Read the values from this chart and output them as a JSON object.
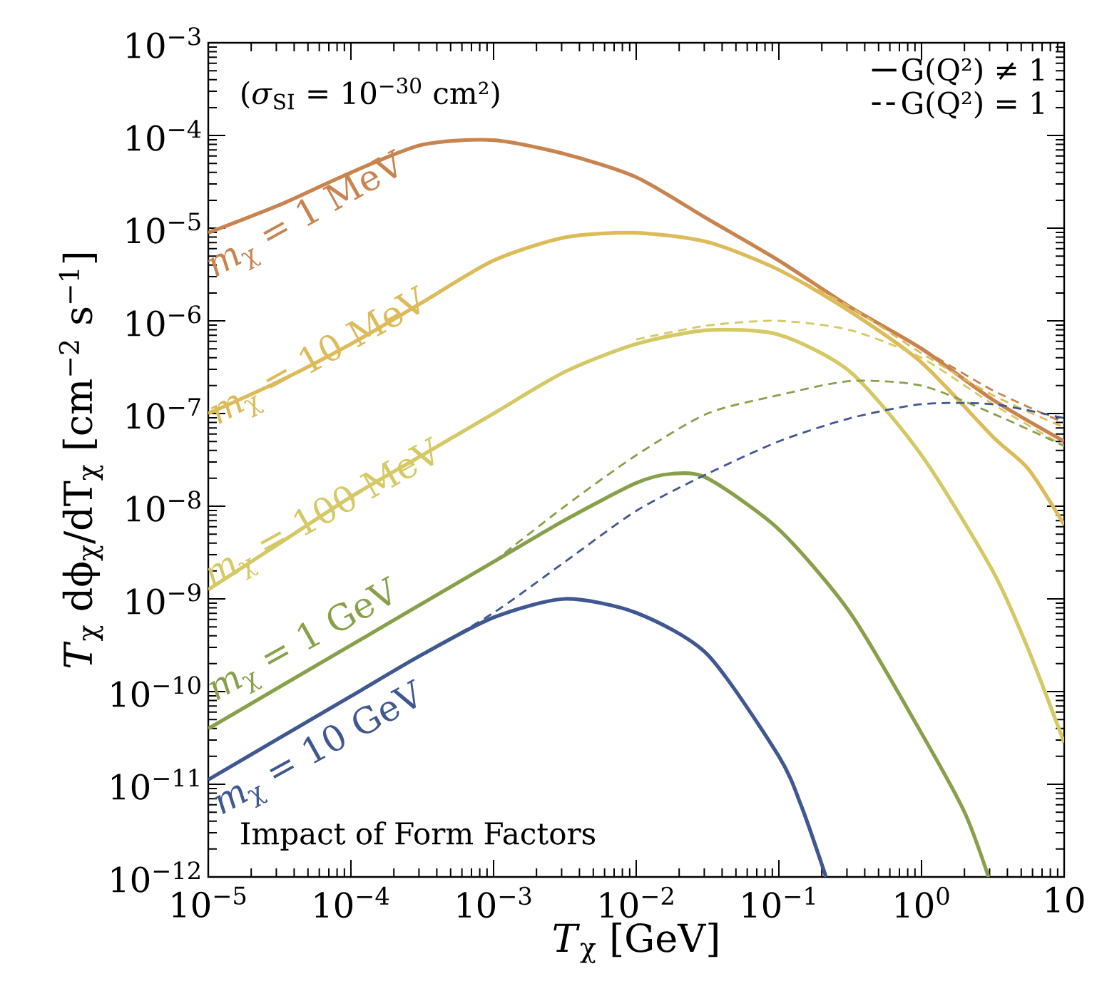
{
  "chart_data": {
    "type": "line",
    "xlabel": "*T*$_{χ}$ [GeV]",
    "ylabel": "*T*$_{χ}$ dϕ$_{χ}$/dT$_{χ}$ [cm$^{−2}$ s$^{−1}$]",
    "log": "xy",
    "xlim": [
      1e-05,
      10
    ],
    "ylim": [
      1e-12,
      0.001
    ],
    "xticks": [
      {
        "value": 1e-05,
        "label": "10$^{−5}$"
      },
      {
        "value": 0.0001,
        "label": "10$^{−4}$"
      },
      {
        "value": 0.001,
        "label": "10$^{−3}$"
      },
      {
        "value": 0.01,
        "label": "10$^{−2}$"
      },
      {
        "value": 0.1,
        "label": "10$^{−1}$"
      },
      {
        "value": 1,
        "label": "10$^{0}$"
      },
      10
    ],
    "yticks": [
      {
        "value": 1e-12,
        "label": "10$^{−12}$"
      },
      {
        "value": 1e-11,
        "label": "10$^{−11}$"
      },
      {
        "value": 1e-10,
        "label": "10$^{−10}$"
      },
      {
        "value": 1e-09,
        "label": "10$^{−9}$"
      },
      {
        "value": 1e-08,
        "label": "10$^{−8}$"
      },
      {
        "value": 1e-07,
        "label": "10$^{−7}$"
      },
      {
        "value": 1e-06,
        "label": "10$^{−6}$"
      },
      {
        "value": 1e-05,
        "label": "10$^{−5}$"
      },
      {
        "value": 0.0001,
        "label": "10$^{−4}$"
      },
      {
        "value": 0.001,
        "label": "10$^{−3}$"
      }
    ],
    "grid": false,
    "legend": "top right",
    "marker": "none",
    "annotations": [
      "(*σ*$_{SI}$ = 10$^{−30}$ cm²)",
      "Impact of Form Factors",
      "*m*$_{χ}$ = 1 MeV",
      "*m*$_{χ}$ = 10 MeV",
      "*m*$_{χ}$ = 100 MeV",
      "*m*$_{χ}$ = 1 GeV",
      "*m*$_{χ}$ = 10 GeV"
    ],
    "series": [
      {
        "color": "#c8834f",
        "line_style": "solid",
        "x": [
          1e-05,
          3.16e-05,
          0.0001,
          0.000316,
          0.001,
          0.00316,
          0.01,
          0.0316,
          0.1,
          0.316,
          1,
          3.16,
          10
        ],
        "values": [
          8.91e-06,
          1.78e-05,
          3.98e-05,
          7.94e-05,
          8.91e-05,
          6.31e-05,
          3.55e-05,
          1.26e-05,
          4.47e-06,
          1.41e-06,
          5.01e-07,
          1.41e-07,
          5.01e-08
        ]
      },
      {
        "color": "#dcbb58",
        "line_style": "solid",
        "x": [
          1e-05,
          3.16e-05,
          0.0001,
          0.000316,
          0.001,
          0.00316,
          0.01,
          0.0316,
          0.1,
          0.316,
          1,
          3.16,
          5.62,
          10
        ],
        "values": [
          1e-07,
          2.24e-07,
          5.62e-07,
          1.58e-06,
          4.47e-06,
          7.94e-06,
          8.91e-06,
          7.08e-06,
          3.55e-06,
          1.26e-06,
          3.55e-07,
          5.62e-08,
          2.51e-08,
          6.31e-09
        ]
      },
      {
        "color": "#d5c965",
        "line_style": "solid",
        "x": [
          1e-05,
          3.16e-05,
          0.0001,
          0.000316,
          0.001,
          0.00316,
          0.01,
          0.0316,
          0.1,
          0.316,
          1,
          3.16,
          5.62,
          10
        ],
        "values": [
          1.26e-09,
          3.98e-09,
          1.26e-08,
          3.55e-08,
          1e-07,
          2.82e-07,
          5.62e-07,
          7.94e-07,
          7.08e-07,
          2.82e-07,
          3.55e-08,
          2e-09,
          2.82e-10,
          2.82e-11
        ]
      },
      {
        "color": "#88a04a",
        "line_style": "solid",
        "x": [
          1e-05,
          3.16e-05,
          0.0001,
          0.000316,
          0.001,
          0.00316,
          0.01,
          0.0178,
          0.0316,
          0.1,
          0.316,
          1,
          2,
          2.95
        ],
        "values": [
          3.98e-11,
          1.12e-10,
          3.16e-10,
          8.91e-10,
          2.51e-09,
          7.08e-09,
          1.78e-08,
          2.24e-08,
          2e-08,
          5.62e-09,
          7.08e-10,
          3.55e-11,
          5.01e-12,
          1e-12
        ]
      },
      {
        "color": "#3f5891",
        "line_style": "solid",
        "x": [
          1e-05,
          3.16e-05,
          0.0001,
          0.000316,
          0.001,
          0.00316,
          0.01,
          0.0316,
          0.1,
          0.145,
          0.214
        ],
        "values": [
          1.12e-11,
          3.16e-11,
          8.91e-11,
          2.51e-10,
          6.31e-10,
          1e-09,
          7.08e-10,
          2.51e-10,
          2e-11,
          5.62e-12,
          1e-12
        ]
      },
      {
        "color": "#c8834f",
        "line_style": "dashed",
        "x": [
          0.316,
          1,
          3.16,
          10
        ],
        "values": [
          1.41e-06,
          5.01e-07,
          1.78e-07,
          7.94e-08
        ]
      },
      {
        "color": "#dcbb58",
        "line_style": "dashed",
        "x": [
          0.1,
          0.316,
          1,
          3.16,
          10
        ],
        "values": [
          3.55e-06,
          1.41e-06,
          4.47e-07,
          1.58e-07,
          7.08e-08
        ]
      },
      {
        "color": "#d5c965",
        "line_style": "dashed",
        "x": [
          0.01,
          0.0316,
          0.1,
          0.316,
          1,
          3.16,
          10
        ],
        "values": [
          6.31e-07,
          8.91e-07,
          1e-06,
          7.94e-07,
          3.98e-07,
          1.26e-07,
          4.47e-08
        ]
      },
      {
        "color": "#88a04a",
        "line_style": "dashed",
        "x": [
          0.001,
          0.00316,
          0.01,
          0.0316,
          0.1,
          0.316,
          1,
          3.16,
          10
        ],
        "values": [
          2.51e-09,
          1e-08,
          3.55e-08,
          1e-07,
          1.58e-07,
          2.24e-07,
          2e-07,
          1e-07,
          4.47e-08
        ]
      },
      {
        "color": "#3f5891",
        "line_style": "dashed",
        "x": [
          0.000316,
          0.001,
          0.00316,
          0.01,
          0.0316,
          0.1,
          0.316,
          1,
          3.16,
          10
        ],
        "values": [
          2.51e-10,
          7.08e-10,
          2.51e-09,
          8.91e-09,
          2.24e-08,
          5.01e-08,
          8.91e-08,
          1.26e-07,
          1.26e-07,
          8.91e-08
        ]
      },
      {
        "name": "G(Q²) ≠ 1",
        "color": "#000000",
        "line_style": "solid"
      },
      {
        "name": "G(Q²) = 1",
        "color": "#000000",
        "line_style": "dashed"
      }
    ]
  }
}
